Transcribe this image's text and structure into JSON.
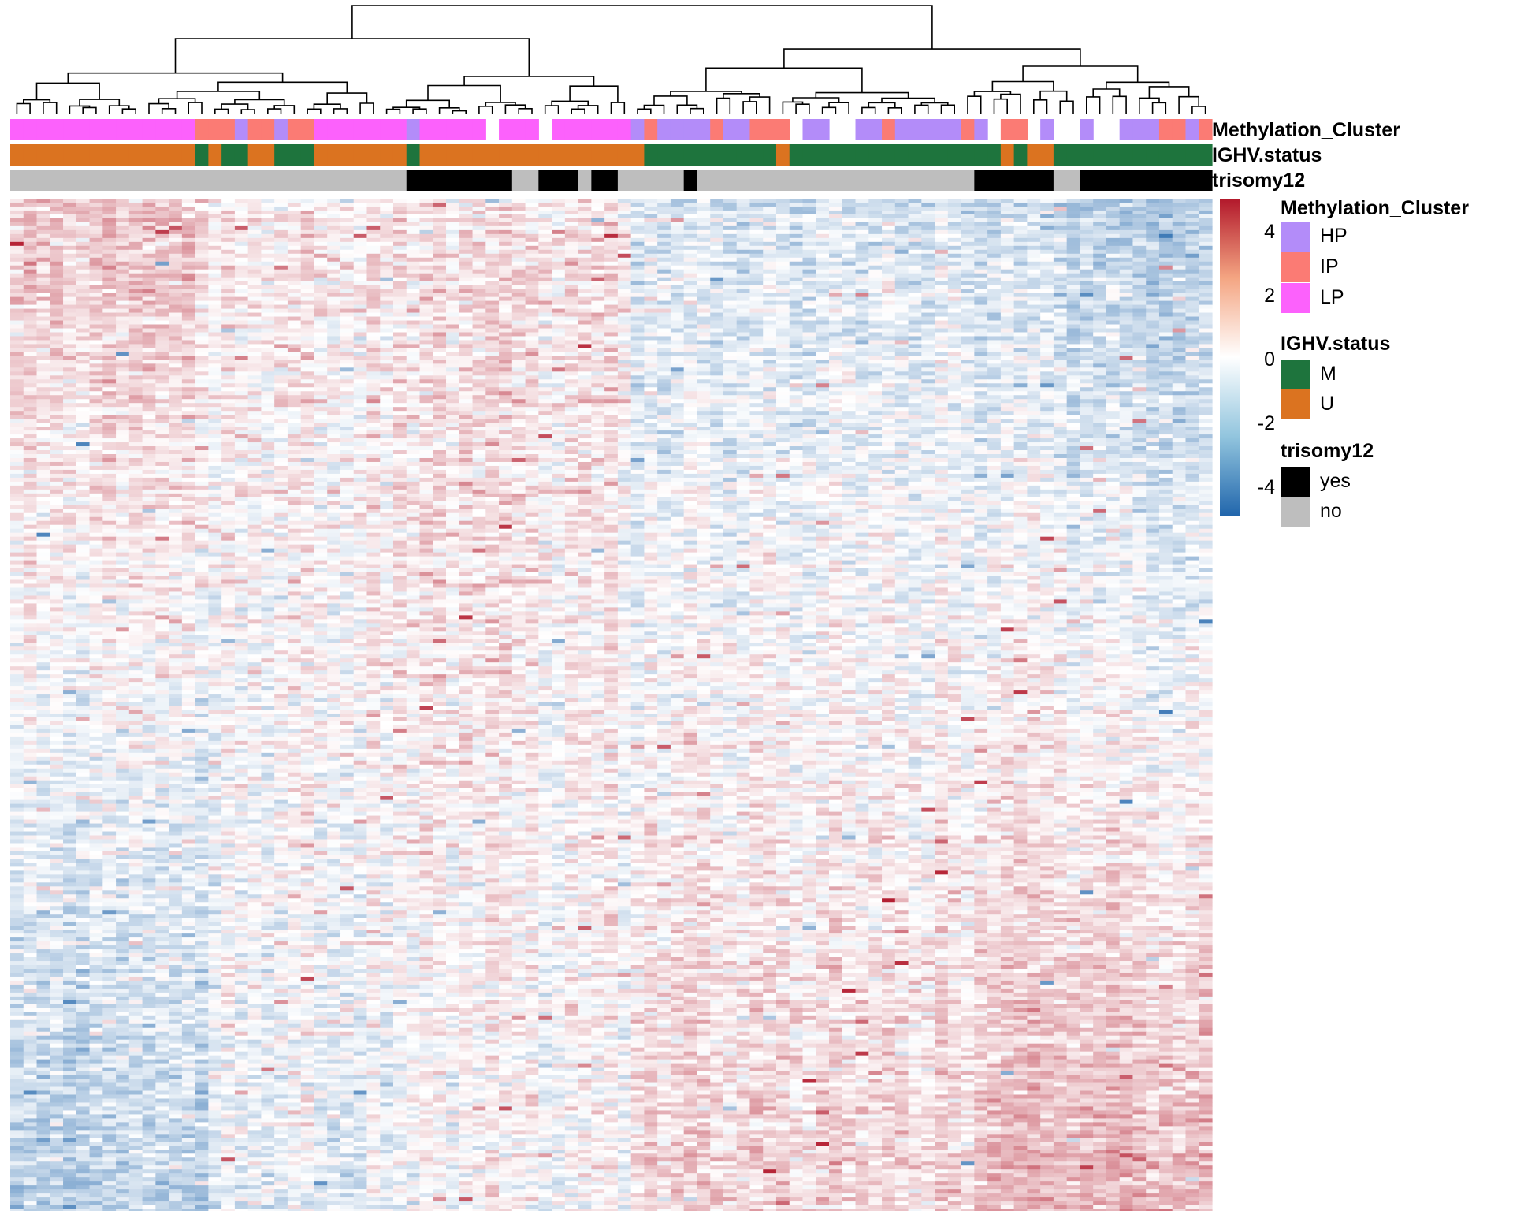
{
  "chart_data": {
    "type": "heatmap",
    "n_rows": 260,
    "n_cols": 91,
    "value_range": [
      -4.5,
      4.5
    ],
    "colorbar": {
      "ticks": [
        4,
        2,
        0,
        -2,
        -4
      ],
      "tick_labels": [
        "4",
        "2",
        "0",
        "-2",
        "-4"
      ],
      "low_color": "#2166AC",
      "mid_color": "#FFFFFF",
      "high_color": "#B2182B"
    },
    "annotation_tracks": [
      {
        "name": "Methylation_Cluster",
        "levels": [
          {
            "label": "HP",
            "color": "#B38CF9"
          },
          {
            "label": "IP",
            "color": "#FB7B74"
          },
          {
            "label": "LP",
            "color": "#FC61FC"
          }
        ],
        "column_values": [
          "LP",
          "LP",
          "LP",
          "LP",
          "LP",
          "LP",
          "LP",
          "LP",
          "LP",
          "LP",
          "LP",
          "LP",
          "LP",
          "LP",
          "IP",
          "IP",
          "IP",
          "HP",
          "IP",
          "IP",
          "HP",
          "IP",
          "IP",
          "LP",
          "LP",
          "LP",
          "LP",
          "LP",
          "LP",
          "LP",
          "HP",
          "LP",
          "LP",
          "LP",
          "LP",
          "LP",
          "NA",
          "LP",
          "LP",
          "LP",
          "NA",
          "LP",
          "LP",
          "LP",
          "LP",
          "LP",
          "LP",
          "HP",
          "IP",
          "HP",
          "HP",
          "HP",
          "HP",
          "IP",
          "HP",
          "HP",
          "IP",
          "IP",
          "IP",
          "NA",
          "HP",
          "HP",
          "NA",
          "NA",
          "HP",
          "HP",
          "IP",
          "HP",
          "HP",
          "HP",
          "HP",
          "HP",
          "IP",
          "HP",
          "NA",
          "IP",
          "IP",
          "NA",
          "HP",
          "NA",
          "NA",
          "HP",
          "NA",
          "NA",
          "HP",
          "HP",
          "HP",
          "IP",
          "IP",
          "HP",
          "IP"
        ]
      },
      {
        "name": "IGHV.status",
        "levels": [
          {
            "label": "M",
            "color": "#1E743D"
          },
          {
            "label": "U",
            "color": "#DB7320"
          }
        ],
        "column_values": [
          "U",
          "U",
          "U",
          "U",
          "U",
          "U",
          "U",
          "U",
          "U",
          "U",
          "U",
          "U",
          "U",
          "U",
          "M",
          "U",
          "M",
          "M",
          "U",
          "U",
          "M",
          "M",
          "M",
          "U",
          "U",
          "U",
          "U",
          "U",
          "U",
          "U",
          "M",
          "U",
          "U",
          "U",
          "U",
          "U",
          "U",
          "U",
          "U",
          "U",
          "U",
          "U",
          "U",
          "U",
          "U",
          "U",
          "U",
          "U",
          "M",
          "M",
          "M",
          "M",
          "M",
          "M",
          "M",
          "M",
          "M",
          "M",
          "U",
          "M",
          "M",
          "M",
          "M",
          "M",
          "M",
          "M",
          "M",
          "M",
          "M",
          "M",
          "M",
          "M",
          "M",
          "M",
          "M",
          "U",
          "M",
          "U",
          "U",
          "M",
          "M",
          "M",
          "M",
          "M",
          "M",
          "M",
          "M",
          "M",
          "M",
          "M",
          "M"
        ]
      },
      {
        "name": "trisomy12",
        "levels": [
          {
            "label": "yes",
            "color": "#000000"
          },
          {
            "label": "no",
            "color": "#BEBEBE"
          }
        ],
        "column_values": [
          "no",
          "no",
          "no",
          "no",
          "no",
          "no",
          "no",
          "no",
          "no",
          "no",
          "no",
          "no",
          "no",
          "no",
          "no",
          "no",
          "no",
          "no",
          "no",
          "no",
          "no",
          "no",
          "no",
          "no",
          "no",
          "no",
          "no",
          "no",
          "no",
          "no",
          "yes",
          "yes",
          "yes",
          "yes",
          "yes",
          "yes",
          "yes",
          "yes",
          "no",
          "no",
          "yes",
          "yes",
          "yes",
          "no",
          "yes",
          "yes",
          "no",
          "no",
          "no",
          "no",
          "no",
          "yes",
          "no",
          "no",
          "no",
          "no",
          "no",
          "no",
          "no",
          "no",
          "no",
          "no",
          "no",
          "no",
          "no",
          "no",
          "no",
          "no",
          "no",
          "no",
          "no",
          "no",
          "no",
          "yes",
          "yes",
          "yes",
          "yes",
          "yes",
          "yes",
          "no",
          "no",
          "yes",
          "yes",
          "yes",
          "yes",
          "yes",
          "yes",
          "yes",
          "yes",
          "yes",
          "yes"
        ]
      }
    ],
    "column_dendrogram": true,
    "row_labels_shown": false,
    "column_labels_shown": false
  }
}
